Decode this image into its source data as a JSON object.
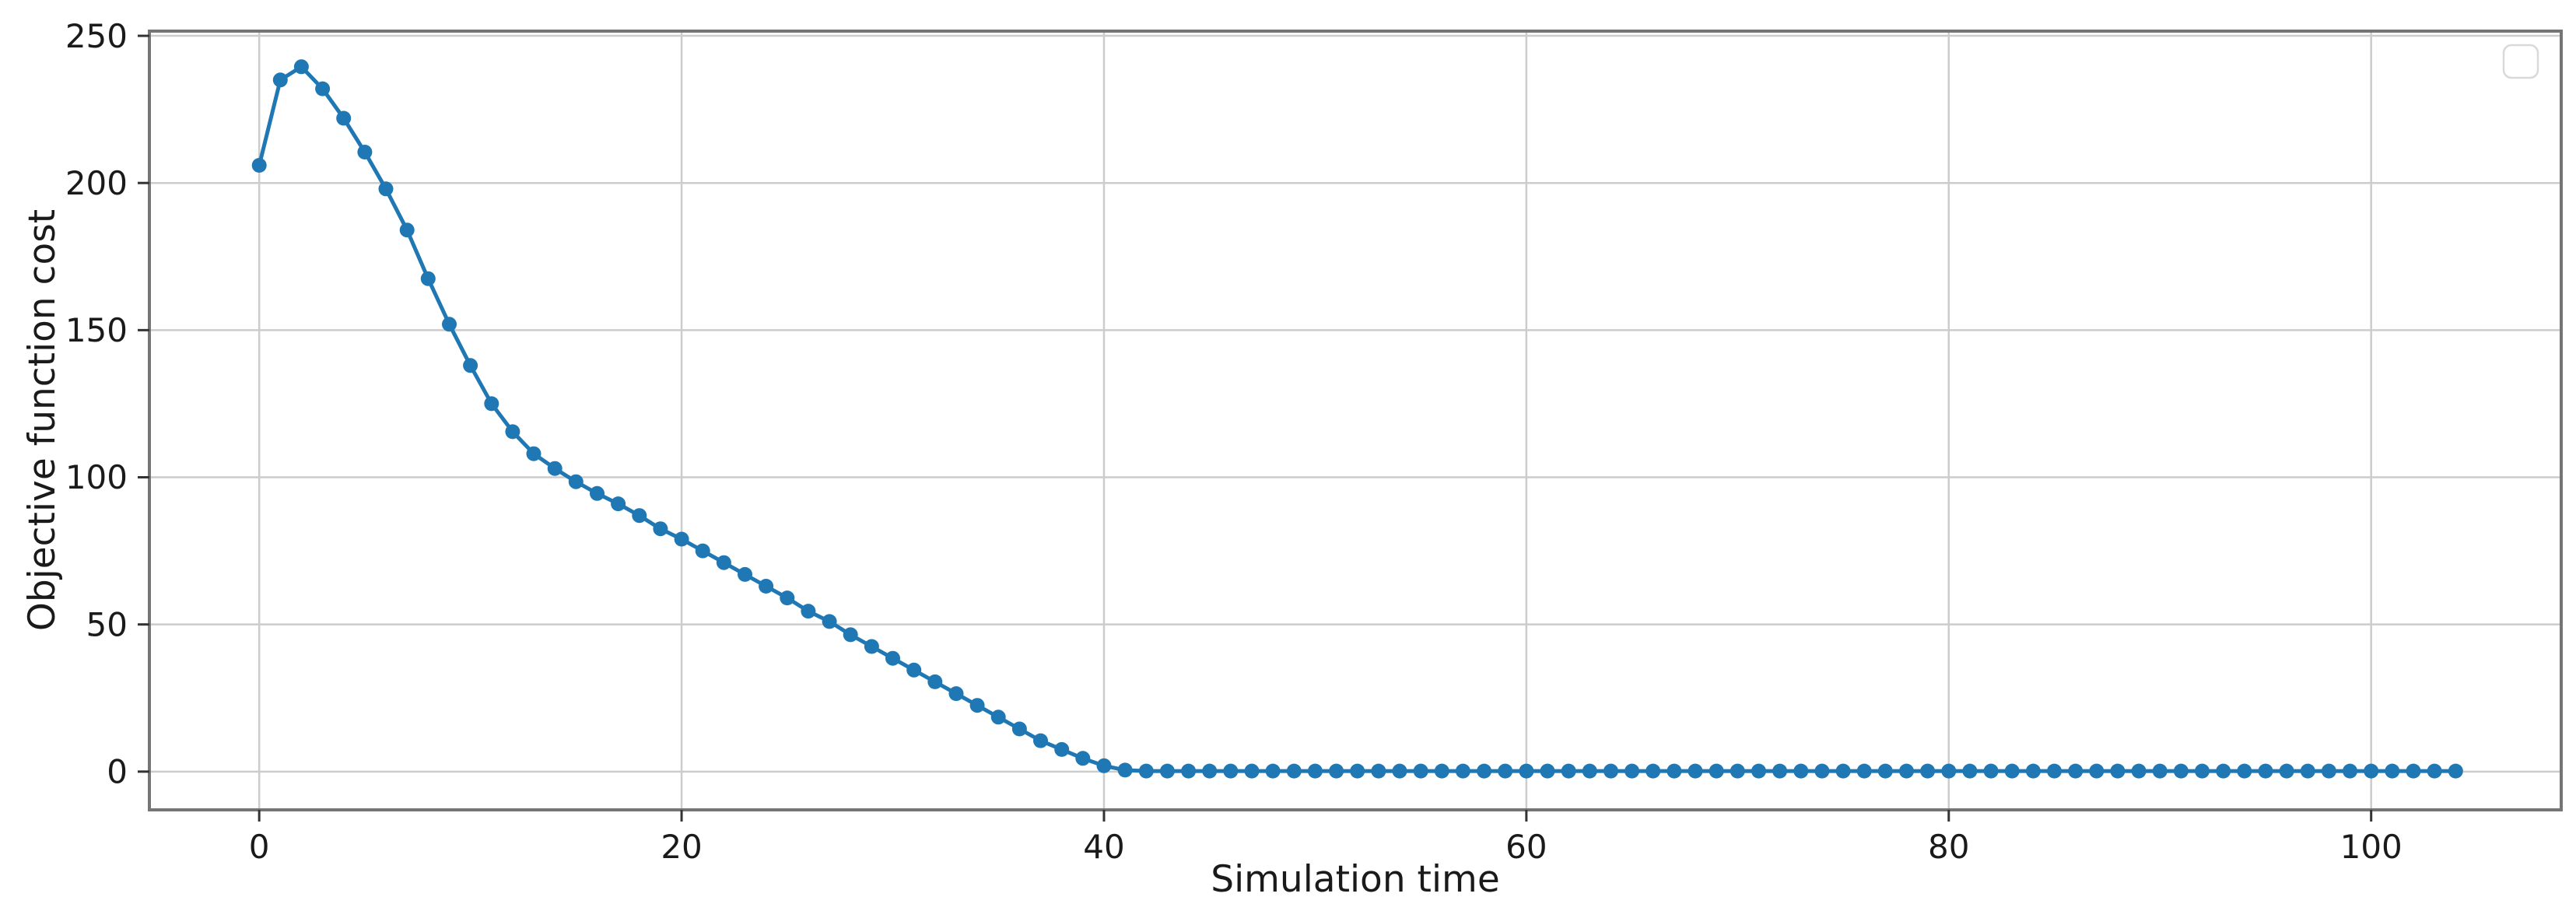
{
  "chart_data": {
    "type": "line",
    "title": "",
    "xlabel": "Simulation time",
    "ylabel": "Objective function cost",
    "xlim": [
      -5.2,
      109.0
    ],
    "ylim": [
      -13.0,
      251.6
    ],
    "xticks": [
      0,
      20,
      40,
      60,
      80,
      100
    ],
    "yticks": [
      0,
      50,
      100,
      150,
      200,
      250
    ],
    "grid": true,
    "legend": {
      "visible": true,
      "entries": [],
      "position": "upper right"
    },
    "series": [
      {
        "name": "",
        "color": "#1f77b4",
        "marker": "circle",
        "x_start": 0,
        "x_step": 1,
        "values": [
          206,
          235,
          239.5,
          232,
          222,
          210.5,
          198,
          184,
          167.5,
          152,
          138,
          125,
          115.5,
          108,
          103,
          98.5,
          94.5,
          91,
          87,
          82.5,
          79,
          75,
          71,
          67,
          63,
          59,
          54.5,
          51,
          46.5,
          42.5,
          38.5,
          34.5,
          30.5,
          26.5,
          22.5,
          18.5,
          14.5,
          10.5,
          7.5,
          4.5,
          2,
          0.5,
          0.2,
          0.2,
          0.2,
          0.2,
          0.2,
          0.2,
          0.2,
          0.2,
          0.2,
          0.2,
          0.2,
          0.2,
          0.2,
          0.2,
          0.2,
          0.2,
          0.2,
          0.2,
          0.2,
          0.2,
          0.2,
          0.2,
          0.2,
          0.2,
          0.2,
          0.2,
          0.2,
          0.2,
          0.2,
          0.2,
          0.2,
          0.2,
          0.2,
          0.2,
          0.2,
          0.2,
          0.2,
          0.2,
          0.2,
          0.2,
          0.2,
          0.2,
          0.2,
          0.2,
          0.2,
          0.2,
          0.2,
          0.2,
          0.2,
          0.2,
          0.2,
          0.2,
          0.2,
          0.2,
          0.2,
          0.2,
          0.2,
          0.2,
          0.2,
          0.2,
          0.2,
          0.2,
          0.2
        ]
      }
    ],
    "style": {
      "line_color": "#1f77b4",
      "grid_color": "#cccccc",
      "spine_color": "#757575",
      "tick_color": "#333333",
      "legend_border_color": "#d9d9d9",
      "background": "#ffffff"
    }
  }
}
